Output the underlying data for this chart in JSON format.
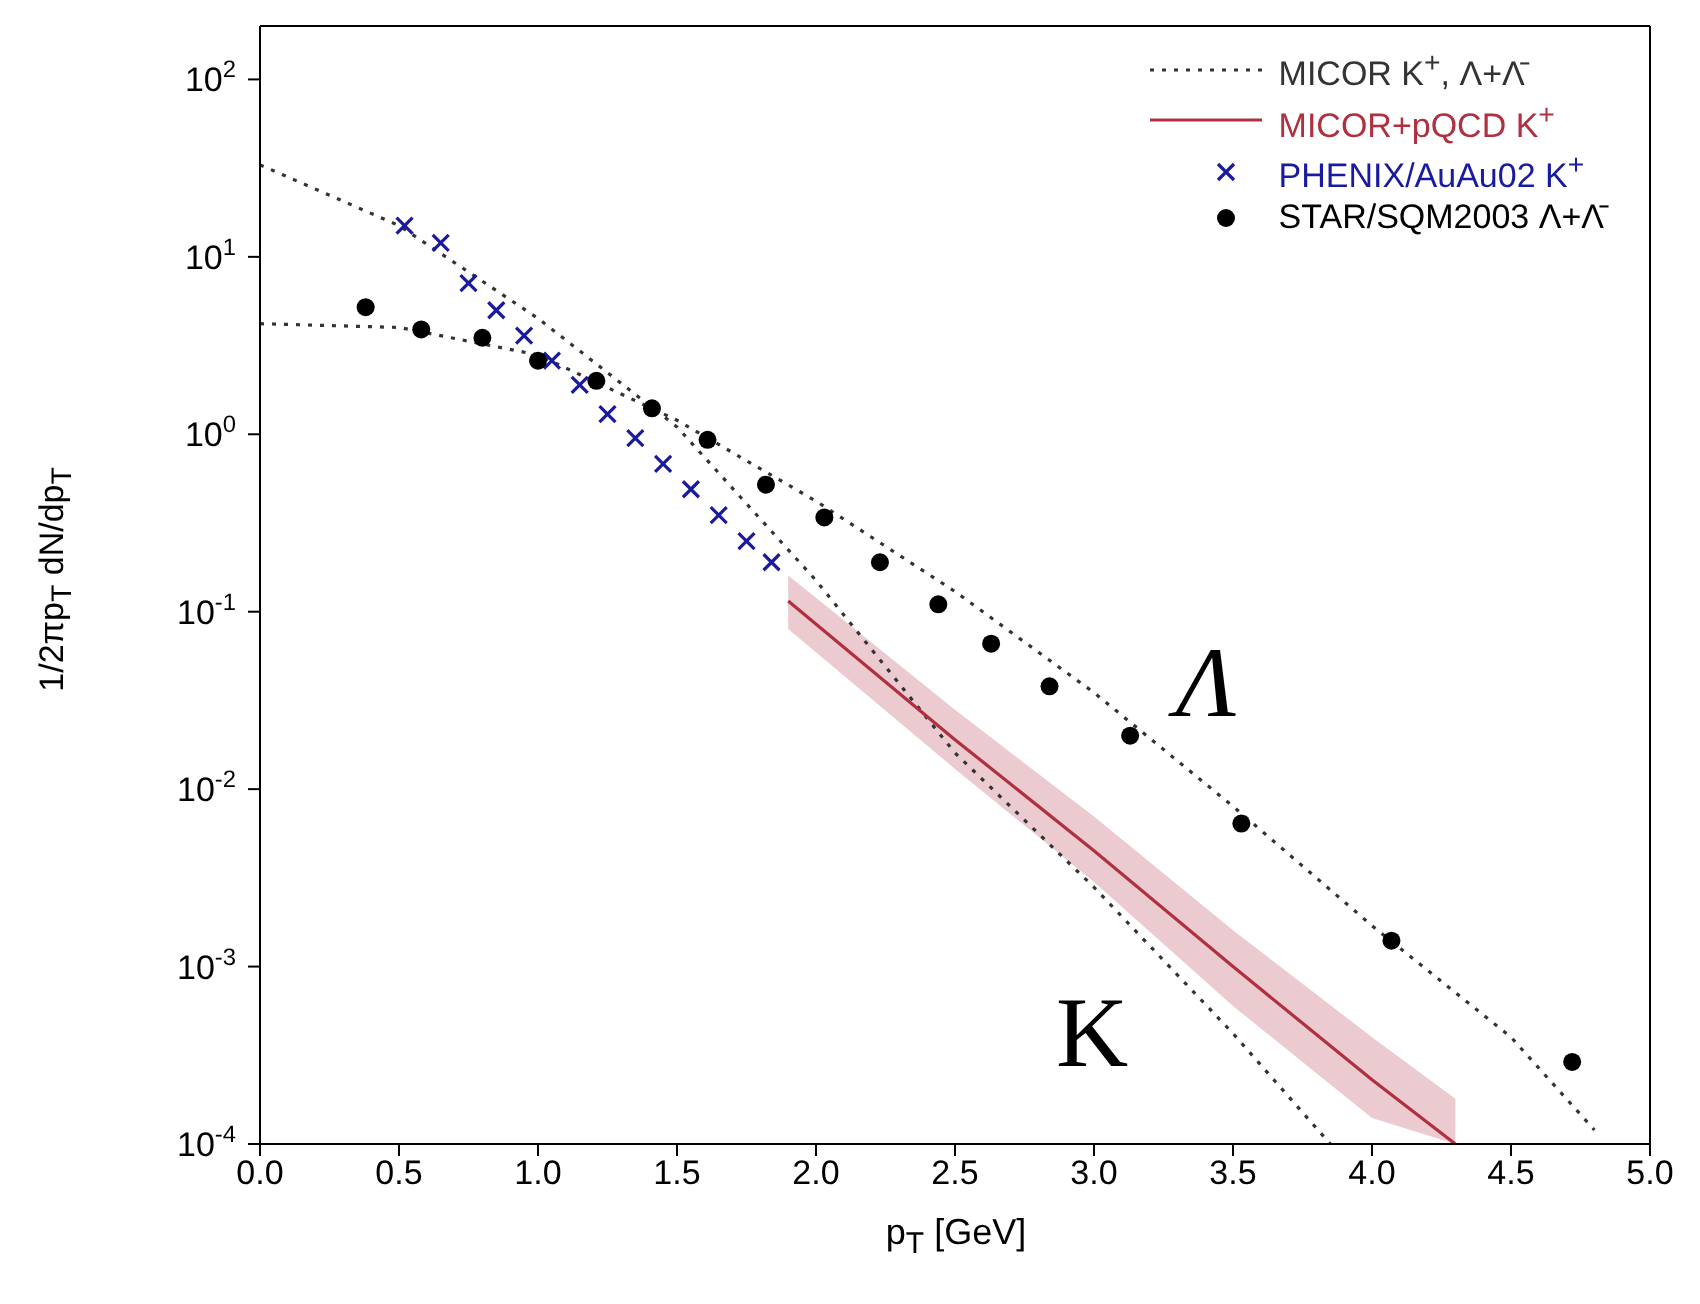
{
  "chart_data": {
    "type": "line",
    "xlabel": "p$_{T}$ [GeV]",
    "ylabel": "1/2πp$_{T}$ dN/dp$_{T}$",
    "xlim": [
      0,
      5
    ],
    "xticks": [
      {
        "value": 0,
        "label": "0.0"
      },
      {
        "value": 0.5,
        "label": "0.5"
      },
      {
        "value": 1,
        "label": "1.0"
      },
      {
        "value": 1.5,
        "label": "1.5"
      },
      {
        "value": 2,
        "label": "2.0"
      },
      {
        "value": 2.5,
        "label": "2.5"
      },
      {
        "value": 3,
        "label": "3.0"
      },
      {
        "value": 3.5,
        "label": "3.5"
      },
      {
        "value": 4,
        "label": "4.0"
      },
      {
        "value": 4.5,
        "label": "4.5"
      },
      {
        "value": 5,
        "label": "5.0"
      }
    ],
    "ylim": [
      0.0001,
      200
    ],
    "yticks": [
      {
        "value": 0.0001,
        "label": "10$^{-4}$"
      },
      {
        "value": 0.001,
        "label": "10$^{-3}$"
      },
      {
        "value": 0.01,
        "label": "10$^{-2}$"
      },
      {
        "value": 0.1,
        "label": "10$^{-1}$"
      },
      {
        "value": 1,
        "label": "10$^{0}$"
      },
      {
        "value": 10,
        "label": "10$^{1}$"
      },
      {
        "value": 100,
        "label": "10$^{2}$"
      }
    ],
    "log": "y",
    "legend": "top right",
    "series": [
      {
        "name": "MICOR K$^{+}$, Λ+Λ̄",
        "line_style": "dotted",
        "marker": "none",
        "color": "#333333",
        "x": [
          0,
          0.5,
          1,
          1.5,
          2,
          2.5,
          3,
          3.5,
          4,
          4.5,
          4.8
        ],
        "values": [
          4.2,
          4,
          2.8,
          1.2,
          0.42,
          0.13,
          0.035,
          0.008,
          0.0017,
          0.0004,
          0.00012
        ]
      },
      {
        "line_style": "dotted",
        "marker": "none",
        "color": "#333333",
        "x": [
          0,
          0.5,
          1,
          1.5,
          2,
          2.5,
          3,
          3.5,
          3.85
        ],
        "values": [
          33,
          15,
          4.5,
          1.1,
          0.15,
          0.016,
          0.0028,
          0.00042,
          0.0001
        ]
      },
      {
        "name": "MICOR+pQCD K$^{+}$",
        "line_style": "solid",
        "marker": "none",
        "color": "#b03040",
        "x": [
          1.9,
          2.5,
          3,
          3.5,
          4,
          4.3
        ],
        "values": [
          0.115,
          0.019,
          0.0045,
          0.001,
          0.00023,
          0.0001
        ],
        "lower": [
          0.08,
          0.013,
          0.003,
          0.0006,
          0.00014,
          0.0001
        ],
        "upper": [
          0.16,
          0.028,
          0.007,
          0.0016,
          0.0004,
          0.00018
        ]
      },
      {
        "name": "PHENIX/AuAu02 K$^{+}$",
        "type": "scatter",
        "marker": "cross",
        "color": "#1a1aa0",
        "x": [
          0.52,
          0.65,
          0.75,
          0.85,
          0.95,
          1.05,
          1.15,
          1.25,
          1.35,
          1.45,
          1.55,
          1.65,
          1.75,
          1.84
        ],
        "values": [
          15,
          12,
          7.1,
          5,
          3.6,
          2.6,
          1.9,
          1.3,
          0.95,
          0.68,
          0.49,
          0.35,
          0.25,
          0.19
        ]
      },
      {
        "name": "STAR/SQM2003 Λ+Λ̄",
        "type": "scatter",
        "marker": "circle",
        "color": "#000000",
        "x": [
          0.38,
          0.58,
          0.8,
          1,
          1.21,
          1.41,
          1.61,
          1.82,
          2.03,
          2.23,
          2.44,
          2.63,
          2.84,
          3.13,
          3.53,
          4.07,
          4.72
        ],
        "values": [
          5.2,
          3.9,
          3.5,
          2.6,
          2,
          1.4,
          0.93,
          0.52,
          0.34,
          0.19,
          0.11,
          0.066,
          0.038,
          0.02,
          0.0064,
          0.0014,
          0.00029
        ]
      }
    ],
    "annotations": [
      "Λ",
      "K"
    ]
  }
}
